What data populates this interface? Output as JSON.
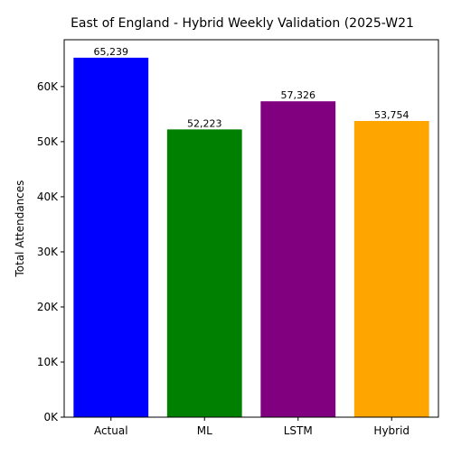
{
  "chart_data": {
    "type": "bar",
    "title": "East of England - Hybrid Weekly Validation (2025-W21",
    "xlabel": "",
    "ylabel": "Total Attendances",
    "categories": [
      "Actual",
      "ML",
      "LSTM",
      "Hybrid"
    ],
    "values": [
      65239,
      52223,
      57326,
      53754
    ],
    "value_labels": [
      "65,239",
      "52,223",
      "57,326",
      "53,754"
    ],
    "colors": [
      "#0000ff",
      "#008000",
      "#800080",
      "#ffa500"
    ],
    "ylim": [
      0,
      68500
    ],
    "yticks": [
      0,
      10000,
      20000,
      30000,
      40000,
      50000,
      60000
    ],
    "ytick_labels": [
      "0K",
      "10K",
      "20K",
      "30K",
      "40K",
      "50K",
      "60K"
    ],
    "grid": false,
    "legend": "none"
  }
}
